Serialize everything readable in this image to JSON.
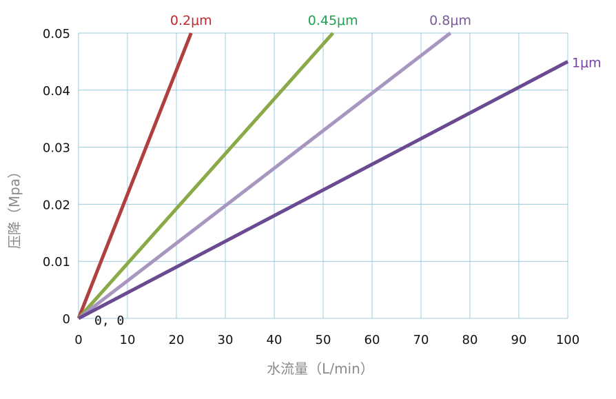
{
  "chart_data": {
    "type": "line",
    "xlabel": "水流量（L/min）",
    "ylabel": "压降（Mpa）",
    "xlim": [
      0,
      100
    ],
    "ylim": [
      0,
      0.05
    ],
    "x_ticks": [
      "0",
      "10",
      "20",
      "30",
      "40",
      "50",
      "60",
      "70",
      "80",
      "90",
      "100"
    ],
    "y_ticks": [
      "0",
      "0.01",
      "0.02",
      "0.03",
      "0.04",
      "0.05"
    ],
    "grid": true,
    "annotation": "0, 0",
    "series": [
      {
        "name": "0.2μm",
        "color": "#b04040",
        "x": [
          0,
          23
        ],
        "y": [
          0,
          0.05
        ]
      },
      {
        "name": "0.45μm",
        "color": "#8aaa48",
        "x": [
          0,
          52
        ],
        "y": [
          0,
          0.05
        ]
      },
      {
        "name": "0.8μm",
        "color": "#a696c0",
        "x": [
          0,
          76
        ],
        "y": [
          0,
          0.05
        ]
      },
      {
        "name": "1μm",
        "color": "#6a4a90",
        "x": [
          0,
          100
        ],
        "y": [
          0,
          0.045
        ]
      }
    ],
    "series_label_colors": [
      "#c0282e",
      "#20a050",
      "#7a5a9a",
      "#7a40a0"
    ]
  }
}
